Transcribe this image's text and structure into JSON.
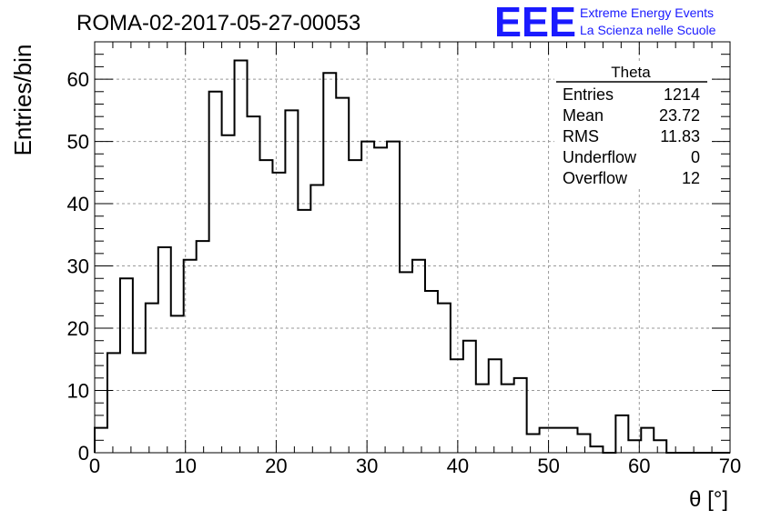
{
  "page": {
    "title": "ROMA-02-2017-05-27-00053"
  },
  "logo": {
    "text": "EEE",
    "line1": "Extreme Energy Events",
    "line2": "La Scienza nelle Scuole",
    "color": "#1a1aff"
  },
  "stats": {
    "title": "Theta",
    "rows": [
      {
        "label": "Entries",
        "value": "1214"
      },
      {
        "label": "Mean",
        "value": "23.72"
      },
      {
        "label": "RMS",
        "value": "11.83"
      },
      {
        "label": "Underflow",
        "value": "0"
      },
      {
        "label": "Overflow",
        "value": "12"
      }
    ]
  },
  "chart_data": {
    "type": "bar",
    "histogram": true,
    "title": "ROMA-02-2017-05-27-00053",
    "xlabel": "θ [°]",
    "ylabel": "Entries/bin",
    "xlim": [
      0,
      70
    ],
    "ylim": [
      0,
      66
    ],
    "xticks": [
      0,
      10,
      20,
      30,
      40,
      50,
      60,
      70
    ],
    "yticks": [
      0,
      10,
      20,
      30,
      40,
      50,
      60
    ],
    "grid": true,
    "bin_width": 1.4,
    "x": [
      0.0,
      1.4,
      2.8,
      4.2,
      5.6,
      7.0,
      8.4,
      9.8,
      11.2,
      12.6,
      14.0,
      15.4,
      16.8,
      18.2,
      19.6,
      21.0,
      22.4,
      23.8,
      25.2,
      26.6,
      28.0,
      29.4,
      30.8,
      32.2,
      33.6,
      35.0,
      36.4,
      37.8,
      39.2,
      40.6,
      42.0,
      43.4,
      44.8,
      46.2,
      47.6,
      49.0,
      50.4,
      51.8,
      53.2,
      54.6,
      56.0,
      57.4,
      58.8,
      60.2,
      61.6,
      63.0,
      64.4,
      65.8,
      67.2,
      68.6
    ],
    "values": [
      4,
      16,
      28,
      16,
      24,
      33,
      22,
      31,
      34,
      58,
      51,
      63,
      54,
      47,
      45,
      55,
      39,
      43,
      61,
      57,
      47,
      50,
      49,
      50,
      29,
      31,
      26,
      24,
      15,
      18,
      11,
      15,
      11,
      12,
      3,
      4,
      4,
      4,
      3,
      1,
      0,
      6,
      2,
      4,
      2,
      0,
      0,
      0,
      0,
      0
    ],
    "colors": {
      "line": "#000000",
      "grid": "#999999"
    }
  }
}
